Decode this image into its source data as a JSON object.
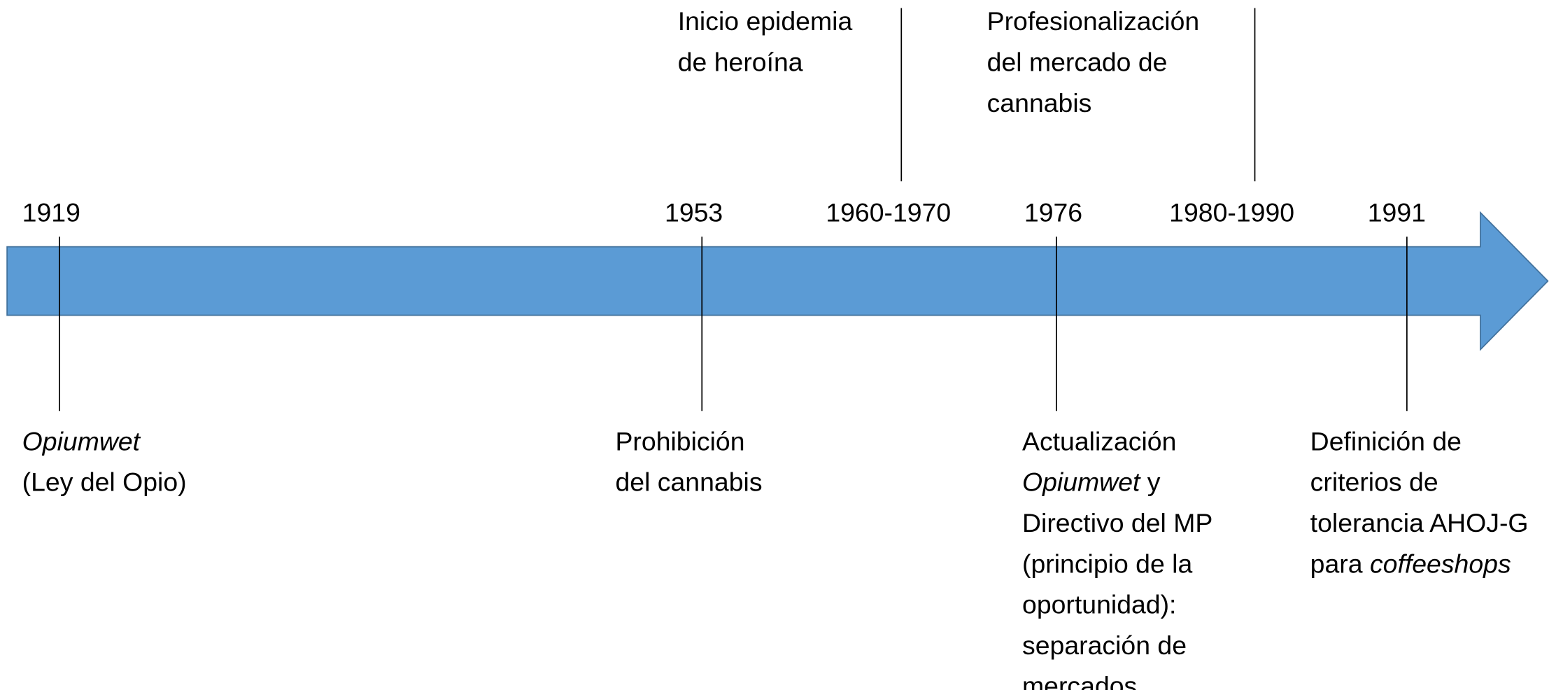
{
  "events": [
    {
      "date": "1919",
      "label": [
        [
          {
            "text": "Opiumwet",
            "italic": true
          }
        ],
        [
          {
            "text": "(Ley del Opio)"
          }
        ]
      ]
    },
    {
      "date": "1953",
      "label": [
        [
          {
            "text": "Prohibición"
          }
        ],
        [
          {
            "text": "del cannabis"
          }
        ]
      ]
    },
    {
      "date": "1960-1970",
      "label": [
        [
          {
            "text": "Inicio epidemia"
          }
        ],
        [
          {
            "text": "de heroína"
          }
        ]
      ]
    },
    {
      "date": "1976",
      "label": [
        [
          {
            "text": "Actualización"
          }
        ],
        [
          {
            "text": "Opiumwet",
            "italic": true
          },
          {
            "text": " y"
          }
        ],
        [
          {
            "text": "Directivo del MP"
          }
        ],
        [
          {
            "text": "(principio de la"
          }
        ],
        [
          {
            "text": "oportunidad):"
          }
        ],
        [
          {
            "text": "separación de"
          }
        ],
        [
          {
            "text": "mercados"
          }
        ]
      ]
    },
    {
      "date": "1980-1990",
      "label": [
        [
          {
            "text": "Profesionalización"
          }
        ],
        [
          {
            "text": "del mercado de"
          }
        ],
        [
          {
            "text": "cannabis"
          }
        ]
      ]
    },
    {
      "date": "1991",
      "label": [
        [
          {
            "text": "Definición de"
          }
        ],
        [
          {
            "text": "criterios de"
          }
        ],
        [
          {
            "text": "tolerancia AHOJ-G"
          }
        ],
        [
          {
            "text": "para "
          },
          {
            "text": "coffeeshops",
            "italic": true
          }
        ]
      ]
    }
  ]
}
